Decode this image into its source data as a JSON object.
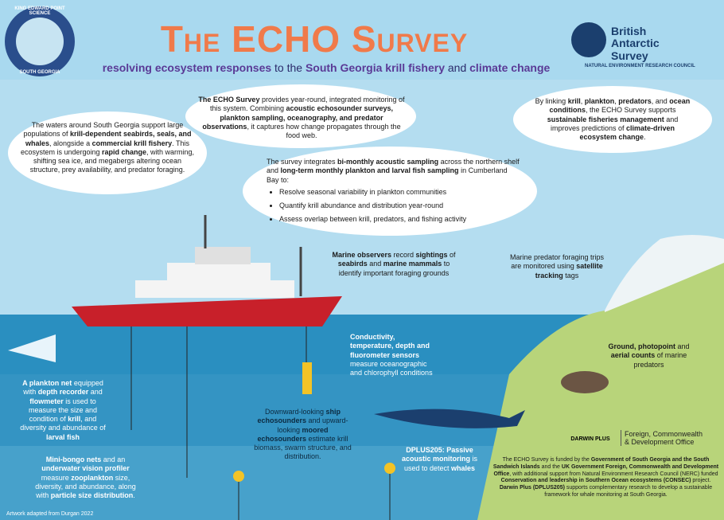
{
  "header": {
    "title": "The ECHO Survey",
    "subtitle": {
      "runs": [
        {
          "text": "resolving ecosystem responses",
          "bold": true
        },
        " to the ",
        {
          "text": "South Georgia krill fishery",
          "bold": true
        },
        " and ",
        {
          "text": "climate change",
          "bold": true
        }
      ]
    },
    "badge_top": "KING EDWARD POINT SCIENCE",
    "badge_bottom": "SOUTH GEORGIA",
    "org_name": "British Antarctic Survey",
    "org_sub": "NATURAL ENVIRONMENT RESEARCH COUNCIL"
  },
  "intro": {
    "runs": [
      "The waters around South Georgia support large populations of ",
      {
        "text": "krill-dependent seabirds, seals, and whales",
        "bold": true
      },
      ", alongside a ",
      {
        "text": "commercial krill fishery",
        "bold": true
      },
      ". This ecosystem is undergoing ",
      {
        "text": "rapid change",
        "bold": true
      },
      ", with warming, shifting sea ice, and megabergs altering ocean structure, prey availability, and predator foraging."
    ]
  },
  "about": {
    "runs": [
      {
        "text": "The ECHO Survey",
        "bold": true
      },
      " provides year-round, integrated monitoring of this system. Combining ",
      {
        "text": "acoustic echosounder surveys, plankton sampling, oceanography, and predator observations",
        "bold": true
      },
      ", it captures how change propagates through the food web."
    ]
  },
  "impact": {
    "runs": [
      "By linking ",
      {
        "text": "krill",
        "bold": true
      },
      ", ",
      {
        "text": "plankton",
        "bold": true
      },
      ", ",
      {
        "text": "predators",
        "bold": true
      },
      ", and ",
      {
        "text": "ocean conditions",
        "bold": true
      },
      ", the ECHO Survey supports ",
      {
        "text": "sustainable fisheries management",
        "bold": true
      },
      " and improves predictions of ",
      {
        "text": "climate-driven ecosystem change",
        "bold": true
      },
      "."
    ]
  },
  "aims": {
    "runs": [
      "The survey integrates ",
      {
        "text": "bi-monthly acoustic sampling",
        "bold": true
      },
      " across the northern shelf and ",
      {
        "text": "long-term monthly plankton and larval fish sampling",
        "bold": true
      },
      " in Cumberland Bay to:"
    ],
    "bullets": [
      "Resolve seasonal variability in plankton communities",
      "Quantify krill abundance and distribution year-round",
      "Assess overlap between krill, predators, and fishing activity"
    ]
  },
  "methods": {
    "observers": {
      "runs": [
        {
          "text": "Marine observers",
          "bold": true
        },
        " record ",
        {
          "text": "sightings",
          "bold": true
        },
        " of ",
        {
          "text": "seabirds",
          "bold": true
        },
        " and ",
        {
          "text": "marine mammals",
          "bold": true
        },
        " to identify important foraging grounds"
      ]
    },
    "tracking": {
      "runs": [
        "Marine predator foraging trips are monitored using ",
        {
          "text": "satellite tracking",
          "bold": true
        },
        " tags"
      ]
    },
    "ctd": {
      "runs": [
        {
          "text": "Conductivity, temperature, depth and fluorometer sensors",
          "bold": true
        },
        " measure oceanographic and chlorophyll conditions"
      ]
    },
    "counts": {
      "runs": [
        {
          "text": "Ground, photopoint",
          "bold": true
        },
        " and ",
        {
          "text": "aerial counts",
          "bold": true
        },
        " of marine predators"
      ]
    },
    "plankton_net": {
      "runs": [
        {
          "text": "A plankton net",
          "bold": true
        },
        " equipped with ",
        {
          "text": "depth recorder",
          "bold": true
        },
        " and ",
        {
          "text": "flowmeter",
          "bold": true
        },
        " is used to measure the size and condition of ",
        {
          "text": "krill",
          "bold": true
        },
        ", and diversity and abundance of ",
        {
          "text": "larval fish",
          "bold": true
        }
      ]
    },
    "bongo": {
      "runs": [
        {
          "text": "Mini-bongo nets",
          "bold": true
        },
        " and an ",
        {
          "text": "underwater vision profiler",
          "bold": true
        },
        " measure ",
        {
          "text": "zooplankton",
          "bold": true
        },
        " size, diversity, and abundance, along with ",
        {
          "text": "particle size distribution",
          "bold": true
        },
        "."
      ]
    },
    "echosounders": {
      "runs": [
        "Downward-looking ",
        {
          "text": "ship echosounders",
          "bold": true
        },
        " and upward-looking ",
        {
          "text": "moored echosounders",
          "bold": true
        },
        " estimate krill biomass, swarm structure, and distribution."
      ]
    },
    "passive": {
      "runs": [
        {
          "text": "DPLUS205:",
          "bold": true
        },
        " ",
        {
          "text": "Passive acoustic monitoring",
          "bold": true
        },
        " is used to detect ",
        {
          "text": "whales",
          "bold": true
        }
      ]
    }
  },
  "footer": {
    "darwin": "DARWIN PLUS",
    "fcdo": "Foreign, Commonwealth & Development Office",
    "funding": {
      "runs": [
        "The ECHO Survey is funded by the ",
        {
          "text": "Government of South Georgia and the South Sandwich Islands",
          "bold": true
        },
        " and the ",
        {
          "text": "UK Government Foreign, Commonwealth and Development Office",
          "bold": true
        },
        ", with additional support from Natural Environment Research Council (NERC) funded ",
        {
          "text": "Conservation and leadership in Southern Ocean ecosystems (CONSEC)",
          "bold": true
        },
        " project. ",
        {
          "text": "Darwin Plus (DPLUS205)",
          "bold": true
        },
        " supports complementary research to develop a sustainable framework for whale monitoring at South Georgia."
      ]
    },
    "credit": "Artwork adapted from Durgan 2022"
  }
}
